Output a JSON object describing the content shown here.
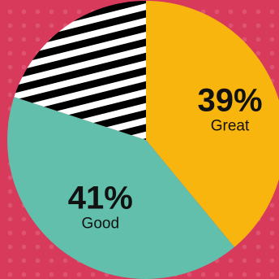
{
  "chart_data": {
    "type": "pie",
    "start_angle_deg": 0,
    "direction": "clockwise",
    "slices": [
      {
        "label": "Great",
        "value": 39,
        "value_label": "39%",
        "color": "#f7b50d",
        "pattern": "solid"
      },
      {
        "label": "Good",
        "value": 41,
        "value_label": "41%",
        "color": "#61bfac",
        "pattern": "solid"
      },
      {
        "label": "",
        "value": 20,
        "value_label": "",
        "color": "#000000",
        "pattern": "stripes",
        "stripe_colors": [
          "#000000",
          "#ffffff"
        ]
      }
    ]
  },
  "colors": {
    "background": "#d83a5c",
    "label_text": "#111111"
  }
}
